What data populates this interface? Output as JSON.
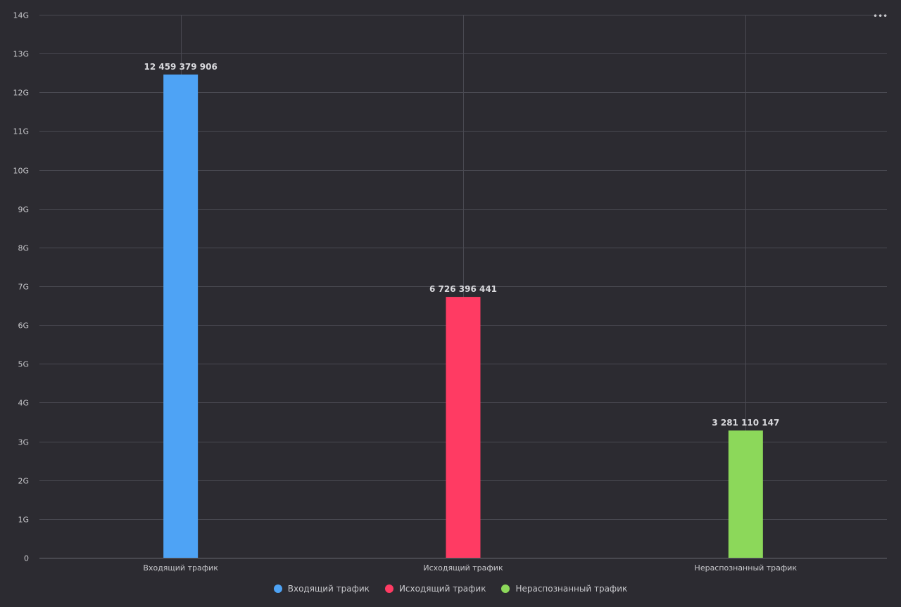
{
  "chart_data": {
    "type": "bar",
    "categories": [
      "Входящий трафик",
      "Исходящий трафик",
      "Нераспознанный трафик"
    ],
    "values": [
      12459379906,
      6726396441,
      3281110147
    ],
    "value_labels": [
      "12 459 379 906",
      "6 726 396 441",
      "3 281 110 147"
    ],
    "colors": [
      "#4ea3f5",
      "#ff3b63",
      "#8cd85a"
    ],
    "ylim": [
      0,
      14000000000
    ],
    "yticks": [
      0,
      1000000000,
      2000000000,
      3000000000,
      4000000000,
      5000000000,
      6000000000,
      7000000000,
      8000000000,
      9000000000,
      10000000000,
      11000000000,
      12000000000,
      13000000000,
      14000000000
    ],
    "ytick_labels": [
      "0",
      "1G",
      "2G",
      "3G",
      "4G",
      "5G",
      "6G",
      "7G",
      "8G",
      "9G",
      "10G",
      "11G",
      "12G",
      "13G",
      "14G"
    ],
    "grid": true,
    "legend_position": "bottom-center",
    "title": "",
    "xlabel": "",
    "ylabel": ""
  },
  "legend": {
    "items": [
      {
        "label": "Входящий трафик",
        "color": "#4ea3f5"
      },
      {
        "label": "Исходящий трафик",
        "color": "#ff3b63"
      },
      {
        "label": "Нераспознанный трафик",
        "color": "#8cd85a"
      }
    ]
  },
  "menu": {
    "label": "•••",
    "icon": "more-horizontal-icon"
  }
}
